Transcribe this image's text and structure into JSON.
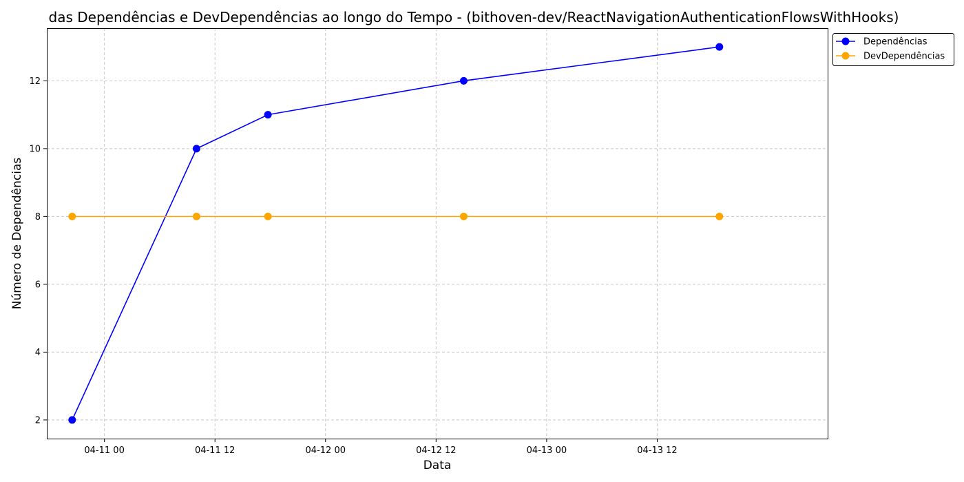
{
  "chart_data": {
    "type": "line",
    "title": "das Dependências e DevDependências ao longo do Tempo - (bithoven-dev/ReactNavigationAuthenticationFlowsWithHooks)",
    "xlabel": "Data",
    "ylabel": "Número de Dependências",
    "x": [
      "2023-04-10 20:30",
      "2023-04-11 10:00",
      "2023-04-11 17:45",
      "2023-04-12 15:00",
      "2023-04-13 18:45"
    ],
    "series": [
      {
        "name": "Dependências",
        "color": "#0000ff",
        "values": [
          2,
          10,
          11,
          12,
          13
        ]
      },
      {
        "name": "DevDependências",
        "color": "#ffa500",
        "values": [
          8,
          8,
          8,
          8,
          8
        ]
      }
    ],
    "x_ticks": [
      {
        "value": "2023-04-11 00:00",
        "label": "04-11 00"
      },
      {
        "value": "2023-04-11 12:00",
        "label": "04-11 12"
      },
      {
        "value": "2023-04-12 00:00",
        "label": "04-12 00"
      },
      {
        "value": "2023-04-12 12:00",
        "label": "04-12 12"
      },
      {
        "value": "2023-04-13 00:00",
        "label": "04-13 00"
      },
      {
        "value": "2023-04-13 12:00",
        "label": "04-13 12"
      }
    ],
    "y_ticks": [
      2,
      4,
      6,
      8,
      10,
      12
    ],
    "xlim": [
      "2023-04-10 17:45",
      "2023-04-14 06:30"
    ],
    "ylim": [
      1.45,
      13.55
    ],
    "grid": true,
    "legend_position": "top-right"
  }
}
